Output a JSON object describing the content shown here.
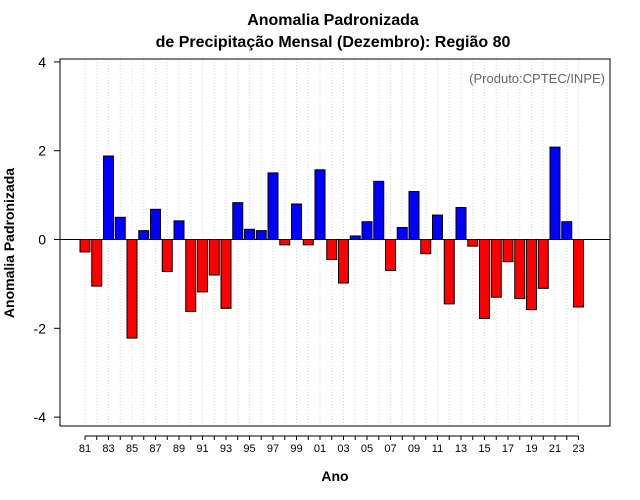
{
  "chart_data": {
    "type": "bar",
    "title_line1": "Anomalia Padronizada",
    "title_line2": "de Precipitação Mensal (Dezembro): Região 80",
    "xlabel": "Ano",
    "ylabel": "Anomalia Padronizada",
    "credit": "(Produto:CPTEC/INPE)",
    "ylim": [
      -4.2,
      4.2
    ],
    "yticks": [
      -4,
      -2,
      0,
      2,
      4
    ],
    "yticks_labels": [
      "-4",
      "-2",
      "0",
      "2",
      "4"
    ],
    "grid": "vertical dotted",
    "positive_color": "#0000ff",
    "negative_color": "#ff0000",
    "categories": [
      "81",
      "82",
      "83",
      "84",
      "85",
      "86",
      "87",
      "88",
      "89",
      "90",
      "91",
      "92",
      "93",
      "94",
      "95",
      "96",
      "97",
      "98",
      "99",
      "00",
      "01",
      "02",
      "03",
      "04",
      "05",
      "06",
      "07",
      "08",
      "09",
      "10",
      "11",
      "12",
      "13",
      "14",
      "15",
      "16",
      "17",
      "18",
      "19",
      "20",
      "21",
      "22",
      "23"
    ],
    "xtick_labels": [
      "81",
      "83",
      "85",
      "87",
      "89",
      "91",
      "93",
      "95",
      "97",
      "99",
      "01",
      "03",
      "05",
      "07",
      "09",
      "11",
      "13",
      "15",
      "17",
      "19",
      "21",
      "23"
    ],
    "values": [
      -0.28,
      -1.05,
      1.88,
      0.5,
      -2.22,
      0.2,
      0.68,
      -0.72,
      0.42,
      -1.62,
      -1.18,
      -0.8,
      -1.55,
      0.83,
      0.23,
      0.2,
      1.5,
      -0.12,
      0.8,
      -0.12,
      1.57,
      -0.45,
      -0.98,
      0.08,
      0.4,
      1.31,
      -0.7,
      0.27,
      1.08,
      -0.32,
      0.55,
      -1.45,
      0.72,
      -0.15,
      -1.78,
      -1.3,
      -0.5,
      -1.33,
      -1.58,
      -1.1,
      2.08,
      0.4,
      -1.52
    ]
  }
}
